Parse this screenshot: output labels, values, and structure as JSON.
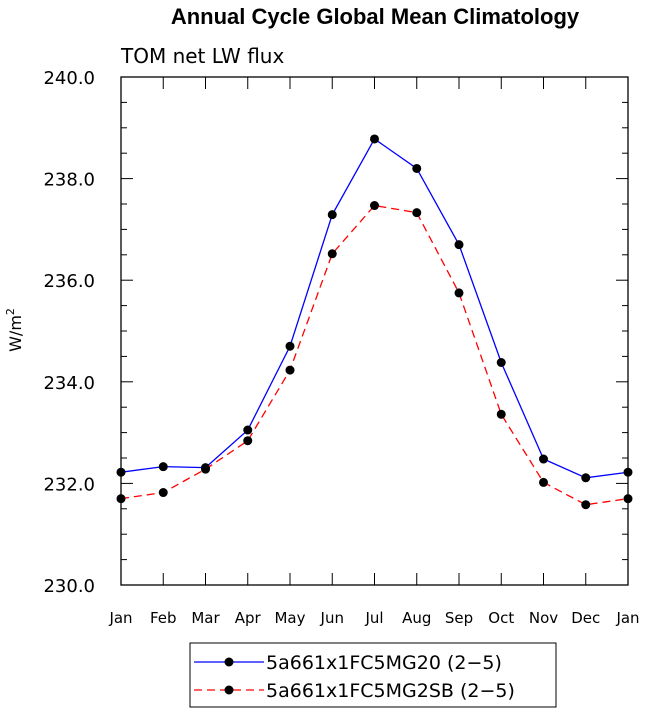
{
  "chart_data": {
    "type": "line",
    "title": "Annual Cycle Global Mean Climatology",
    "subtitle": "TOM net LW flux",
    "ylabel": "W/m",
    "ylabel_sup": "2",
    "xlabel": "",
    "categories": [
      "Jan",
      "Feb",
      "Mar",
      "Apr",
      "May",
      "Jun",
      "Jul",
      "Aug",
      "Sep",
      "Oct",
      "Nov",
      "Dec",
      "Jan"
    ],
    "ylim": [
      230.0,
      240.0
    ],
    "yticks": [
      230.0,
      232.0,
      234.0,
      236.0,
      238.0,
      240.0
    ],
    "ytick_labels": [
      "230.0",
      "232.0",
      "234.0",
      "236.0",
      "238.0",
      "240.0"
    ],
    "grid": false,
    "legend_position": "bottom-center",
    "series": [
      {
        "name": "5a661x1FC5MG20 (2−5)",
        "color": "#0000ff",
        "dash": "solid",
        "values": [
          232.22,
          232.33,
          232.31,
          233.05,
          234.7,
          237.29,
          238.78,
          238.2,
          236.7,
          234.38,
          232.48,
          232.11,
          232.22
        ]
      },
      {
        "name": "5a661x1FC5MG2SB (2−5)",
        "color": "#ff0000",
        "dash": "dashed",
        "values": [
          231.7,
          231.82,
          232.28,
          232.84,
          234.23,
          236.52,
          237.47,
          237.33,
          235.75,
          233.36,
          232.02,
          231.58,
          231.7
        ]
      }
    ]
  }
}
